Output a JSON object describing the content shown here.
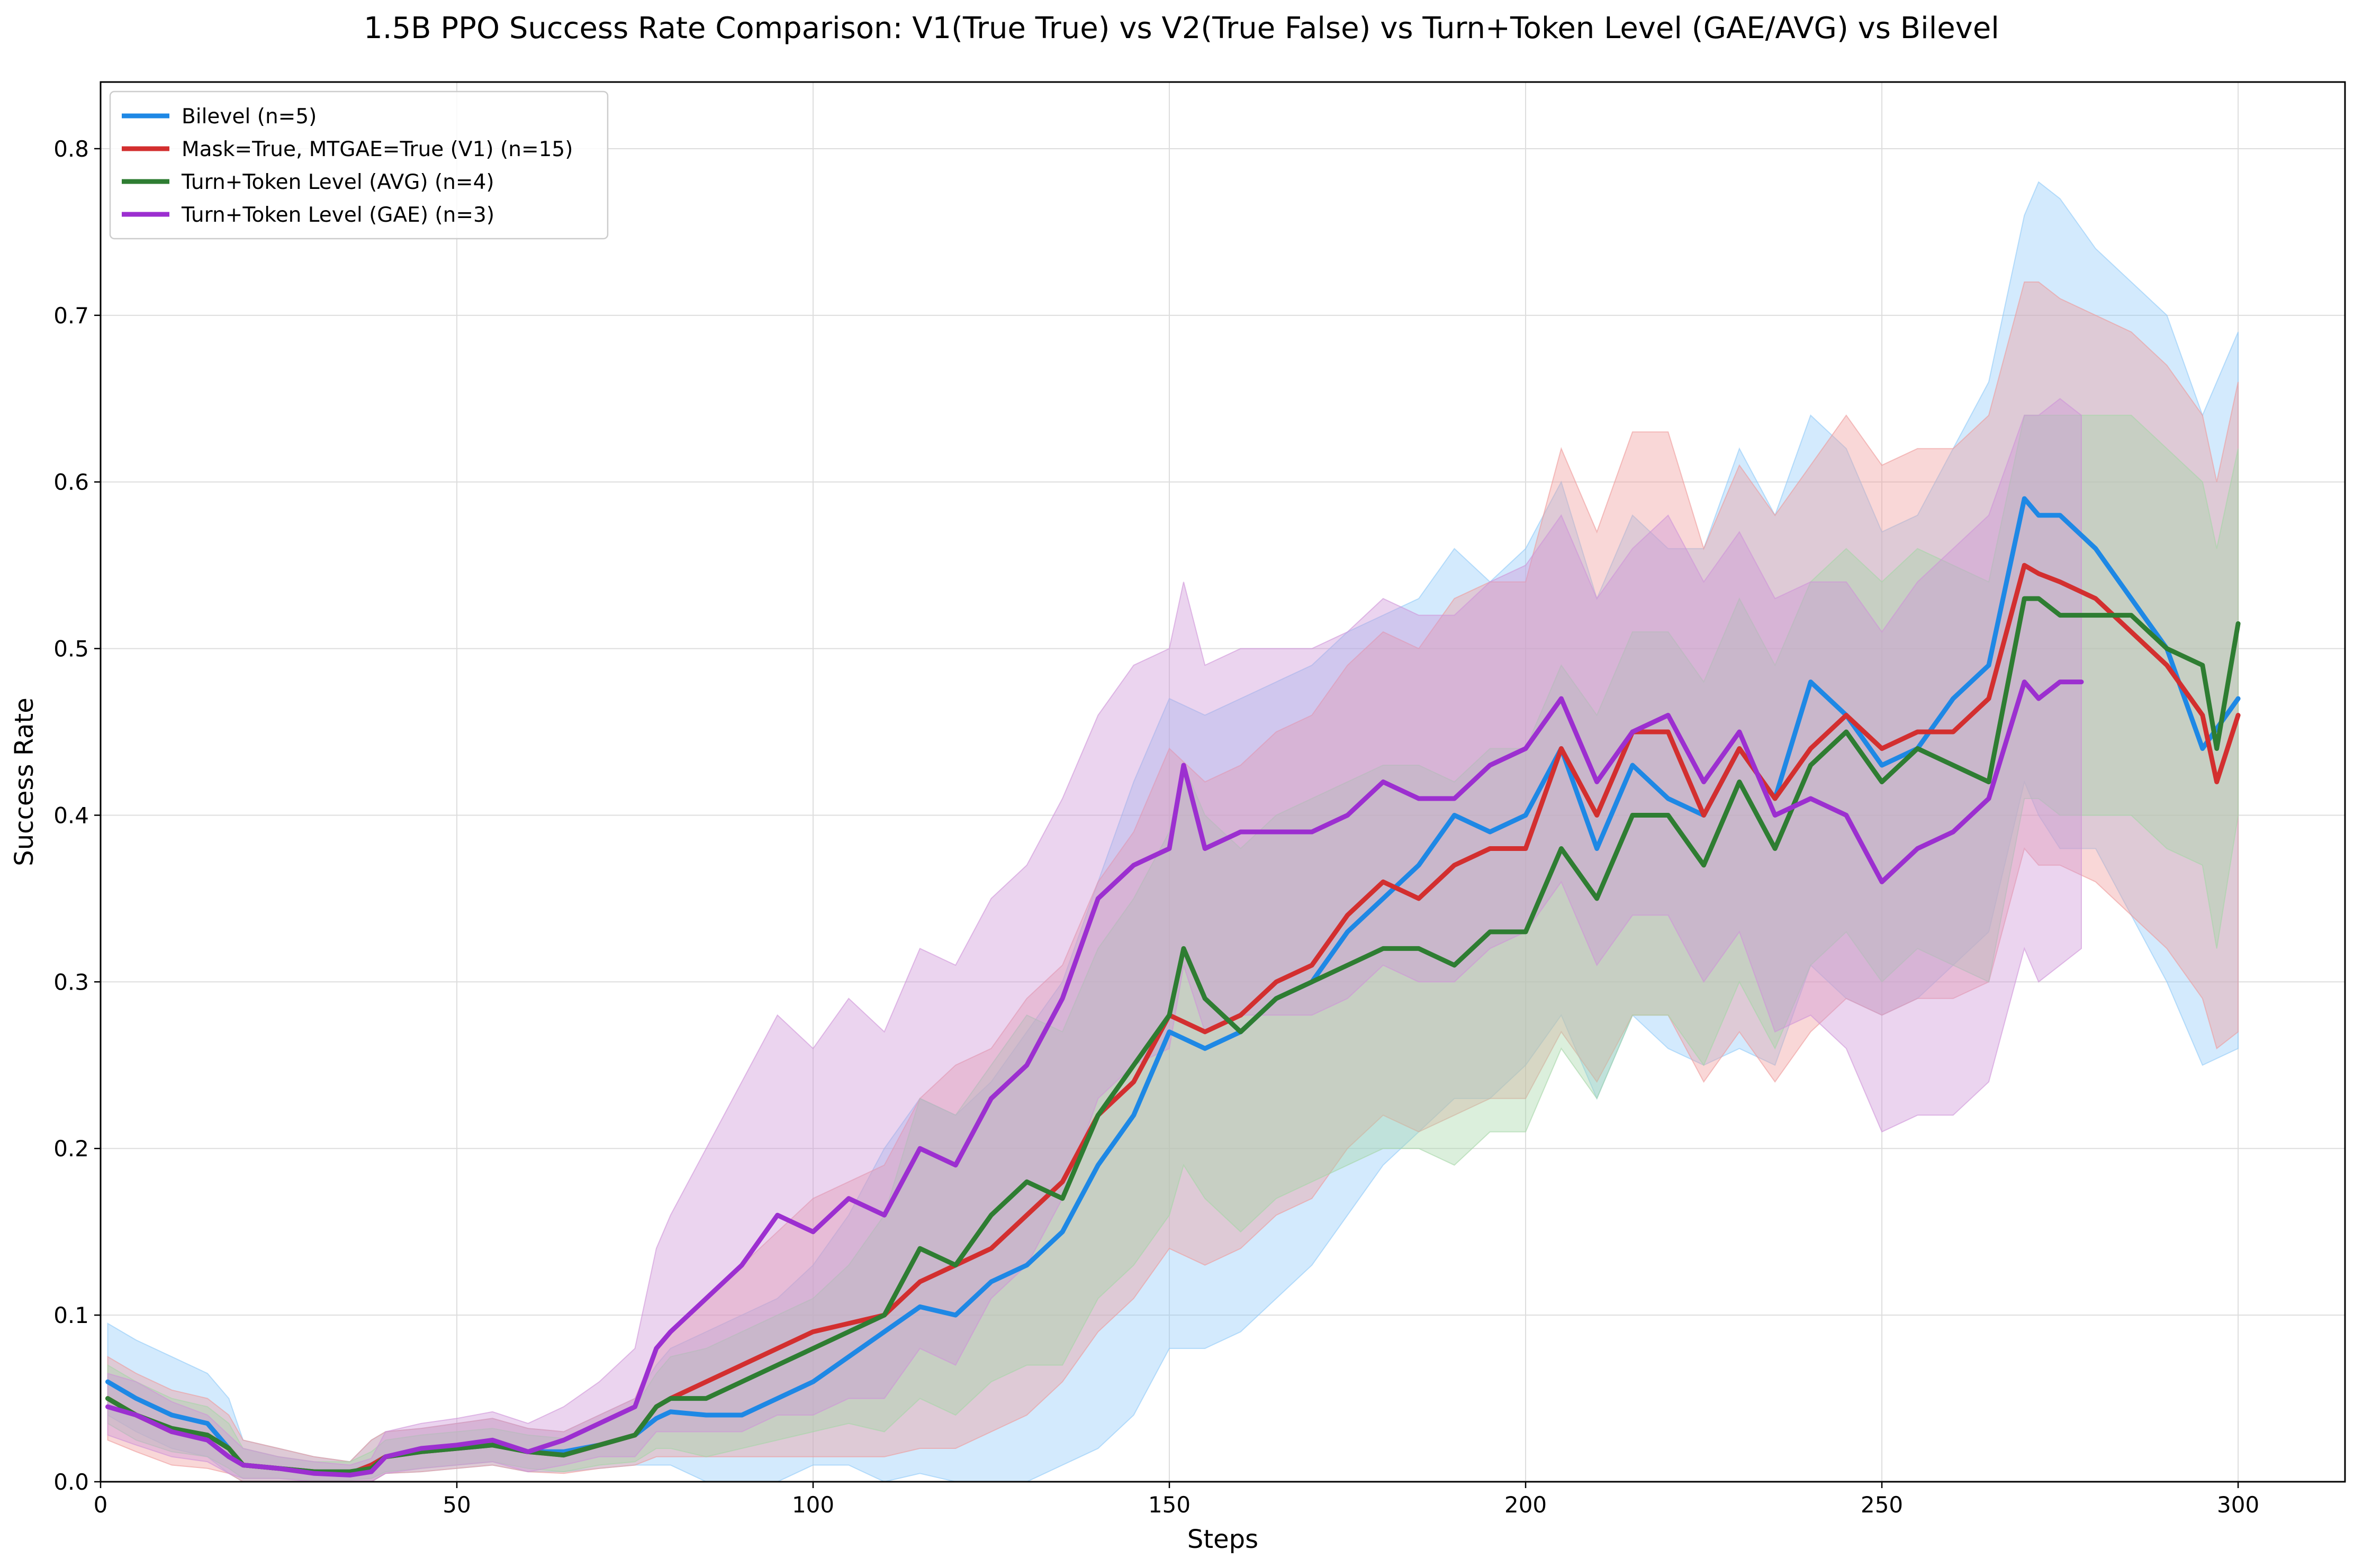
{
  "chart_data": {
    "type": "line",
    "title": "1.5B PPO Success Rate Comparison: V1(True True) vs V2(True False) vs Turn+Token Level (GAE/AVG) vs Bilevel",
    "xlabel": "Steps",
    "ylabel": "Success Rate",
    "xlim": [
      0,
      315
    ],
    "ylim": [
      0,
      0.84
    ],
    "xticks": [
      0,
      50,
      100,
      150,
      200,
      250,
      300
    ],
    "yticks": [
      0.0,
      0.1,
      0.2,
      0.3,
      0.4,
      0.5,
      0.6,
      0.7,
      0.8
    ],
    "grid": true,
    "legend_position": "top-left",
    "series": [
      {
        "name": "Bilevel (n=5)",
        "color": "#1e88e5",
        "band_color": "#90caf9",
        "x": [
          1,
          5,
          10,
          15,
          18,
          20,
          25,
          30,
          35,
          38,
          40,
          45,
          50,
          55,
          60,
          65,
          70,
          75,
          78,
          80,
          85,
          90,
          95,
          100,
          105,
          110,
          115,
          120,
          125,
          130,
          135,
          140,
          145,
          150,
          155,
          160,
          165,
          170,
          175,
          180,
          185,
          190,
          195,
          200,
          205,
          210,
          215,
          220,
          225,
          230,
          235,
          240,
          245,
          250,
          255,
          260,
          265,
          270,
          272,
          275,
          280,
          285,
          290,
          295,
          300
        ],
        "mean": [
          0.06,
          0.05,
          0.04,
          0.035,
          0.02,
          0.01,
          0.008,
          0.006,
          0.005,
          0.01,
          0.015,
          0.018,
          0.02,
          0.022,
          0.018,
          0.018,
          0.022,
          0.028,
          0.038,
          0.042,
          0.04,
          0.04,
          0.05,
          0.06,
          0.075,
          0.09,
          0.105,
          0.1,
          0.12,
          0.13,
          0.15,
          0.19,
          0.22,
          0.27,
          0.26,
          0.27,
          0.29,
          0.3,
          0.33,
          0.35,
          0.37,
          0.4,
          0.39,
          0.4,
          0.44,
          0.38,
          0.43,
          0.41,
          0.4,
          0.44,
          0.41,
          0.48,
          0.46,
          0.43,
          0.44,
          0.47,
          0.49,
          0.59,
          0.58,
          0.58,
          0.56,
          0.53,
          0.5,
          0.44,
          0.47
        ],
        "upper": [
          0.095,
          0.085,
          0.075,
          0.065,
          0.05,
          0.025,
          0.02,
          0.015,
          0.012,
          0.025,
          0.03,
          0.032,
          0.035,
          0.038,
          0.032,
          0.03,
          0.04,
          0.05,
          0.07,
          0.08,
          0.09,
          0.1,
          0.11,
          0.13,
          0.16,
          0.2,
          0.23,
          0.22,
          0.24,
          0.27,
          0.3,
          0.36,
          0.42,
          0.47,
          0.46,
          0.47,
          0.48,
          0.49,
          0.51,
          0.52,
          0.53,
          0.56,
          0.54,
          0.56,
          0.6,
          0.53,
          0.58,
          0.56,
          0.56,
          0.62,
          0.58,
          0.64,
          0.62,
          0.57,
          0.58,
          0.62,
          0.66,
          0.76,
          0.78,
          0.77,
          0.74,
          0.72,
          0.7,
          0.64,
          0.69
        ],
        "lower": [
          0.04,
          0.03,
          0.02,
          0.015,
          0.005,
          0.0,
          0.0,
          0.0,
          0.0,
          0.0,
          0.005,
          0.006,
          0.008,
          0.01,
          0.006,
          0.006,
          0.008,
          0.01,
          0.01,
          0.01,
          0.0,
          0.0,
          0.0,
          0.01,
          0.01,
          0.0,
          0.005,
          0.0,
          0.0,
          0.0,
          0.01,
          0.02,
          0.04,
          0.08,
          0.08,
          0.09,
          0.11,
          0.13,
          0.16,
          0.19,
          0.21,
          0.23,
          0.23,
          0.25,
          0.28,
          0.23,
          0.28,
          0.26,
          0.25,
          0.26,
          0.25,
          0.31,
          0.29,
          0.28,
          0.29,
          0.31,
          0.33,
          0.42,
          0.4,
          0.38,
          0.38,
          0.34,
          0.3,
          0.25,
          0.26
        ]
      },
      {
        "name": "Mask=True, MTGAE=True (V1) (n=15)",
        "color": "#d32f2f",
        "band_color": "#ef9a9a",
        "x": [
          1,
          5,
          10,
          15,
          18,
          20,
          25,
          30,
          35,
          38,
          40,
          45,
          50,
          55,
          60,
          65,
          70,
          75,
          78,
          80,
          85,
          90,
          95,
          100,
          105,
          110,
          115,
          120,
          125,
          130,
          135,
          140,
          145,
          150,
          155,
          160,
          165,
          170,
          175,
          180,
          185,
          190,
          195,
          200,
          205,
          210,
          215,
          220,
          225,
          230,
          235,
          240,
          245,
          250,
          255,
          260,
          265,
          270,
          272,
          275,
          280,
          285,
          290,
          295,
          297,
          300
        ],
        "mean": [
          0.05,
          0.04,
          0.03,
          0.028,
          0.02,
          0.01,
          0.008,
          0.006,
          0.005,
          0.01,
          0.015,
          0.018,
          0.02,
          0.022,
          0.018,
          0.016,
          0.022,
          0.028,
          0.045,
          0.05,
          0.06,
          0.07,
          0.08,
          0.09,
          0.095,
          0.1,
          0.12,
          0.13,
          0.14,
          0.16,
          0.18,
          0.22,
          0.24,
          0.28,
          0.27,
          0.28,
          0.3,
          0.31,
          0.34,
          0.36,
          0.35,
          0.37,
          0.38,
          0.38,
          0.44,
          0.4,
          0.45,
          0.45,
          0.4,
          0.44,
          0.41,
          0.44,
          0.46,
          0.44,
          0.45,
          0.45,
          0.47,
          0.55,
          0.545,
          0.54,
          0.53,
          0.51,
          0.49,
          0.46,
          0.42,
          0.46
        ],
        "upper": [
          0.075,
          0.065,
          0.055,
          0.05,
          0.04,
          0.025,
          0.02,
          0.015,
          0.012,
          0.025,
          0.03,
          0.032,
          0.035,
          0.038,
          0.032,
          0.03,
          0.04,
          0.05,
          0.08,
          0.09,
          0.11,
          0.13,
          0.15,
          0.17,
          0.18,
          0.19,
          0.23,
          0.25,
          0.26,
          0.29,
          0.31,
          0.36,
          0.39,
          0.44,
          0.42,
          0.43,
          0.45,
          0.46,
          0.49,
          0.51,
          0.5,
          0.53,
          0.54,
          0.54,
          0.62,
          0.57,
          0.63,
          0.63,
          0.56,
          0.61,
          0.58,
          0.61,
          0.64,
          0.61,
          0.62,
          0.62,
          0.64,
          0.72,
          0.72,
          0.71,
          0.7,
          0.69,
          0.67,
          0.64,
          0.6,
          0.66
        ],
        "lower": [
          0.025,
          0.018,
          0.01,
          0.008,
          0.005,
          0.0,
          0.0,
          0.0,
          0.0,
          0.0,
          0.005,
          0.006,
          0.008,
          0.01,
          0.006,
          0.005,
          0.008,
          0.01,
          0.015,
          0.015,
          0.015,
          0.015,
          0.015,
          0.015,
          0.015,
          0.015,
          0.02,
          0.02,
          0.03,
          0.04,
          0.06,
          0.09,
          0.11,
          0.14,
          0.13,
          0.14,
          0.16,
          0.17,
          0.2,
          0.22,
          0.21,
          0.22,
          0.23,
          0.23,
          0.27,
          0.24,
          0.28,
          0.28,
          0.24,
          0.27,
          0.24,
          0.27,
          0.29,
          0.28,
          0.29,
          0.29,
          0.3,
          0.38,
          0.37,
          0.37,
          0.36,
          0.34,
          0.32,
          0.29,
          0.26,
          0.27
        ]
      },
      {
        "name": "Turn+Token Level (AVG) (n=4)",
        "color": "#2e7d32",
        "band_color": "#a5d6a7",
        "x": [
          1,
          5,
          10,
          15,
          18,
          20,
          25,
          30,
          35,
          38,
          40,
          45,
          50,
          55,
          60,
          65,
          70,
          75,
          78,
          80,
          85,
          90,
          95,
          100,
          105,
          110,
          115,
          120,
          125,
          130,
          135,
          140,
          145,
          150,
          152,
          155,
          160,
          165,
          170,
          175,
          180,
          185,
          190,
          195,
          200,
          205,
          210,
          215,
          220,
          225,
          230,
          235,
          240,
          245,
          250,
          255,
          260,
          265,
          270,
          272,
          275,
          280,
          285,
          290,
          295,
          297,
          300
        ],
        "mean": [
          0.05,
          0.04,
          0.032,
          0.028,
          0.02,
          0.01,
          0.008,
          0.006,
          0.006,
          0.008,
          0.015,
          0.018,
          0.02,
          0.022,
          0.018,
          0.016,
          0.022,
          0.028,
          0.045,
          0.05,
          0.05,
          0.06,
          0.07,
          0.08,
          0.09,
          0.1,
          0.14,
          0.13,
          0.16,
          0.18,
          0.17,
          0.22,
          0.25,
          0.28,
          0.32,
          0.29,
          0.27,
          0.29,
          0.3,
          0.31,
          0.32,
          0.32,
          0.31,
          0.33,
          0.33,
          0.38,
          0.35,
          0.4,
          0.4,
          0.37,
          0.42,
          0.38,
          0.43,
          0.45,
          0.42,
          0.44,
          0.43,
          0.42,
          0.53,
          0.53,
          0.52,
          0.52,
          0.52,
          0.5,
          0.49,
          0.44,
          0.515
        ],
        "upper": [
          0.07,
          0.06,
          0.05,
          0.045,
          0.035,
          0.02,
          0.015,
          0.012,
          0.012,
          0.018,
          0.025,
          0.028,
          0.03,
          0.032,
          0.028,
          0.026,
          0.035,
          0.045,
          0.065,
          0.075,
          0.08,
          0.09,
          0.1,
          0.11,
          0.13,
          0.16,
          0.23,
          0.22,
          0.25,
          0.28,
          0.27,
          0.32,
          0.35,
          0.39,
          0.43,
          0.4,
          0.38,
          0.4,
          0.41,
          0.42,
          0.43,
          0.43,
          0.42,
          0.44,
          0.44,
          0.49,
          0.46,
          0.51,
          0.51,
          0.48,
          0.53,
          0.49,
          0.54,
          0.56,
          0.54,
          0.56,
          0.55,
          0.54,
          0.64,
          0.64,
          0.64,
          0.64,
          0.64,
          0.62,
          0.6,
          0.56,
          0.62
        ],
        "lower": [
          0.035,
          0.025,
          0.018,
          0.015,
          0.008,
          0.002,
          0.002,
          0.001,
          0.001,
          0.002,
          0.006,
          0.008,
          0.01,
          0.012,
          0.008,
          0.006,
          0.01,
          0.012,
          0.02,
          0.02,
          0.015,
          0.02,
          0.025,
          0.03,
          0.035,
          0.03,
          0.05,
          0.04,
          0.06,
          0.07,
          0.07,
          0.11,
          0.13,
          0.16,
          0.19,
          0.17,
          0.15,
          0.17,
          0.18,
          0.19,
          0.2,
          0.2,
          0.19,
          0.21,
          0.21,
          0.26,
          0.23,
          0.28,
          0.28,
          0.25,
          0.3,
          0.26,
          0.31,
          0.33,
          0.3,
          0.32,
          0.31,
          0.3,
          0.41,
          0.41,
          0.4,
          0.4,
          0.4,
          0.38,
          0.37,
          0.32,
          0.4
        ]
      },
      {
        "name": "Turn+Token Level (GAE) (n=3)",
        "color": "#9c2fd0",
        "band_color": "#ce93d8",
        "x": [
          1,
          5,
          10,
          15,
          18,
          20,
          25,
          30,
          35,
          38,
          40,
          45,
          50,
          55,
          60,
          65,
          70,
          75,
          78,
          80,
          85,
          90,
          95,
          100,
          105,
          110,
          115,
          120,
          125,
          130,
          135,
          140,
          145,
          150,
          152,
          155,
          160,
          165,
          170,
          175,
          180,
          185,
          190,
          195,
          200,
          205,
          210,
          215,
          220,
          225,
          230,
          235,
          240,
          245,
          250,
          255,
          260,
          265,
          270,
          272,
          275,
          278
        ],
        "mean": [
          0.045,
          0.04,
          0.03,
          0.025,
          0.015,
          0.01,
          0.008,
          0.005,
          0.004,
          0.006,
          0.015,
          0.02,
          0.022,
          0.025,
          0.018,
          0.025,
          0.035,
          0.045,
          0.08,
          0.09,
          0.11,
          0.13,
          0.16,
          0.15,
          0.17,
          0.16,
          0.2,
          0.19,
          0.23,
          0.25,
          0.29,
          0.35,
          0.37,
          0.38,
          0.43,
          0.38,
          0.39,
          0.39,
          0.39,
          0.4,
          0.42,
          0.41,
          0.41,
          0.43,
          0.44,
          0.47,
          0.42,
          0.45,
          0.46,
          0.42,
          0.45,
          0.4,
          0.41,
          0.4,
          0.36,
          0.38,
          0.39,
          0.41,
          0.48,
          0.47,
          0.48,
          0.48
        ],
        "upper": [
          0.065,
          0.06,
          0.048,
          0.04,
          0.028,
          0.02,
          0.015,
          0.012,
          0.01,
          0.014,
          0.03,
          0.035,
          0.038,
          0.042,
          0.035,
          0.045,
          0.06,
          0.08,
          0.14,
          0.16,
          0.2,
          0.24,
          0.28,
          0.26,
          0.29,
          0.27,
          0.32,
          0.31,
          0.35,
          0.37,
          0.41,
          0.46,
          0.49,
          0.5,
          0.54,
          0.49,
          0.5,
          0.5,
          0.5,
          0.51,
          0.53,
          0.52,
          0.52,
          0.54,
          0.55,
          0.58,
          0.53,
          0.56,
          0.58,
          0.54,
          0.57,
          0.53,
          0.54,
          0.54,
          0.51,
          0.54,
          0.56,
          0.58,
          0.64,
          0.64,
          0.65,
          0.64
        ],
        "lower": [
          0.028,
          0.022,
          0.015,
          0.012,
          0.005,
          0.002,
          0.002,
          0.0,
          0.0,
          0.0,
          0.005,
          0.008,
          0.01,
          0.012,
          0.006,
          0.01,
          0.015,
          0.015,
          0.03,
          0.03,
          0.03,
          0.03,
          0.04,
          0.04,
          0.05,
          0.05,
          0.08,
          0.07,
          0.11,
          0.13,
          0.17,
          0.23,
          0.25,
          0.26,
          0.31,
          0.27,
          0.28,
          0.28,
          0.28,
          0.29,
          0.31,
          0.3,
          0.3,
          0.32,
          0.33,
          0.36,
          0.31,
          0.34,
          0.34,
          0.3,
          0.33,
          0.27,
          0.28,
          0.26,
          0.21,
          0.22,
          0.22,
          0.24,
          0.32,
          0.3,
          0.31,
          0.32
        ]
      }
    ]
  }
}
